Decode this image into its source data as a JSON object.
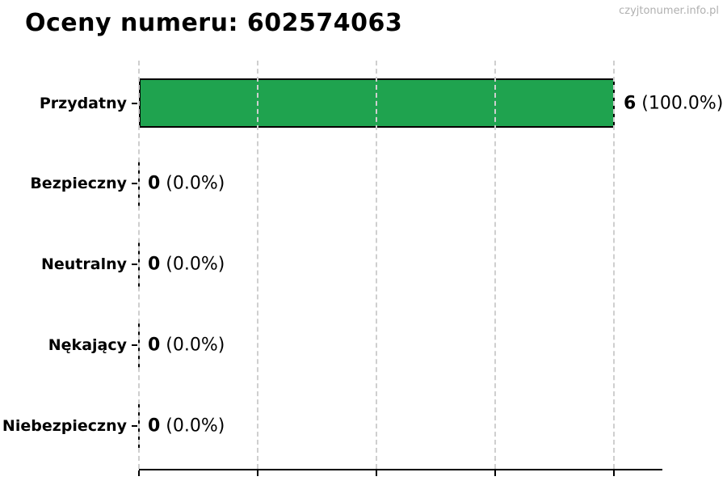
{
  "header": {
    "title": "Oceny numeru: 602574063",
    "watermark": "czyjtonumer.info.pl"
  },
  "colors": {
    "positive_bar": "#1fa34f",
    "bar_border": "#000000",
    "grid_line": "#cfcfcf",
    "axis_line": "#000000",
    "title_text": "#000000",
    "label_text": "#000000",
    "watermark_text": "#b0b0b0"
  },
  "chart_data": {
    "type": "bar",
    "orientation": "horizontal",
    "title": "Oceny numeru: 602574063",
    "categories": [
      "Przydatny",
      "Bezpieczny",
      "Neutralny",
      "Nękający",
      "Niebezpieczny"
    ],
    "values": [
      6,
      0,
      0,
      0,
      0
    ],
    "percentages": [
      100.0,
      0.0,
      0.0,
      0.0,
      0.0
    ],
    "value_labels": [
      {
        "count": "6",
        "percent": "(100.0%)"
      },
      {
        "count": "0",
        "percent": "(0.0%)"
      },
      {
        "count": "0",
        "percent": "(0.0%)"
      },
      {
        "count": "0",
        "percent": "(0.0%)"
      },
      {
        "count": "0",
        "percent": "(0.0%)"
      }
    ],
    "bar_colors": [
      "#1fa34f",
      null,
      null,
      null,
      null
    ],
    "xlim": [
      0,
      6.6
    ],
    "xticks": [
      0,
      1.5,
      3,
      4.5,
      6
    ],
    "grid": true,
    "legend": false,
    "xlabel": "",
    "ylabel": ""
  }
}
